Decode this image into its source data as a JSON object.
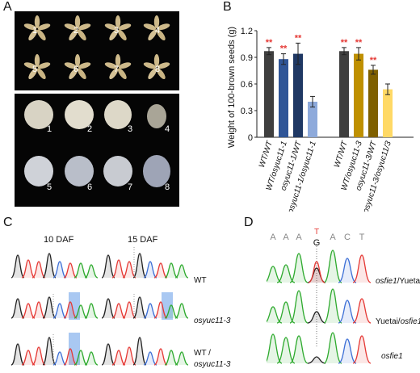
{
  "panels": {
    "A": "A",
    "B": "B",
    "C": "C",
    "D": "D"
  },
  "panelA": {
    "top_labels": [
      "1",
      "2",
      "3",
      "4",
      "5",
      "6",
      "7",
      "8"
    ],
    "bottom_labels": [
      "1",
      "2",
      "3",
      "4",
      "5",
      "6",
      "7",
      "8"
    ]
  },
  "chart_data": {
    "type": "bar",
    "ylabel": "Weight of 100-brown seeds (g)",
    "ylim": [
      0,
      1.2
    ],
    "yticks": [
      "0",
      "0.3",
      "0.6",
      "0.9",
      "1.2"
    ],
    "categories": [
      "WT/WT",
      "WT/osyuc11-1",
      "osyuc11-1/WT",
      "osyuc11-1/osyuc11-1",
      "WT/WT",
      "WT/osyuc11-3",
      "osyuc11-3/WT",
      "osyuc11-3/osyuc11/3"
    ],
    "values": [
      0.97,
      0.88,
      0.94,
      0.4,
      0.97,
      0.94,
      0.76,
      0.54
    ],
    "errors": [
      0.04,
      0.06,
      0.12,
      0.06,
      0.04,
      0.07,
      0.05,
      0.06
    ],
    "significance": [
      "**",
      "**",
      "**",
      "",
      "**",
      "**",
      "**",
      ""
    ],
    "colors": [
      "#3f3f3f",
      "#2f5597",
      "#1f3864",
      "#8eaadb",
      "#3f3f3f",
      "#bf9000",
      "#7f6000",
      "#ffd966"
    ],
    "grid": false
  },
  "panelC": {
    "col1": "10 DAF",
    "col2": "15 DAF",
    "row1": "WT",
    "row2": "osyuc11-3",
    "row3a": "WT /",
    "row3b": "osyuc11-3"
  },
  "panelD": {
    "bases": [
      "A",
      "A",
      "A",
      "G",
      "A",
      "C",
      "T"
    ],
    "het_base": "T",
    "row1a": "osfie1",
    "row1b": "/Yuetai",
    "row2a": "Yuetai/",
    "row2b": "osfie1",
    "row3": "osfie1"
  },
  "colors": {
    "trace_black": "#222222",
    "trace_red": "#e53935",
    "trace_green": "#2eaa2e",
    "trace_blue": "#3c6fd6",
    "highlight": "#a9c8f2",
    "sig_red": "#e53935"
  }
}
